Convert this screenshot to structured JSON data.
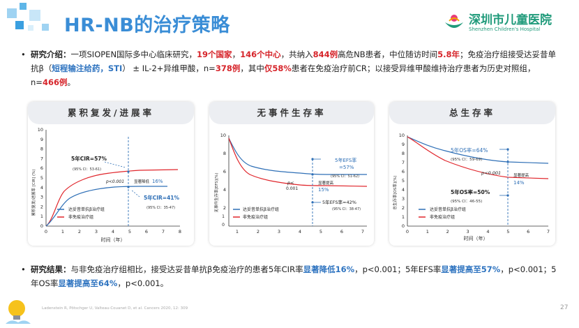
{
  "title": "HR-NB的治疗策略",
  "logo": {
    "cn": "深圳市儿童医院",
    "en": "Shenzhen Children's Hospital"
  },
  "intro": {
    "label": "研究介绍：",
    "t1": "一项SIOPEN国际多中心临床研究，",
    "countries": "19个国家",
    "t2": "，",
    "centers": "146个中心",
    "t3": "，共纳入",
    "patients": "844例",
    "t4": "高危NB患者，中位随访时间",
    "followup": "5.8年",
    "t5": "；免疫治疗组接受达妥昔单抗β（",
    "sti": "短程输注给药，STI",
    "t6": "） ± IL-2+异维甲酸，n=",
    "n1": "378例",
    "t7": "，其中",
    "cr": "仅58%",
    "t8": "患者在免疫治疗前CR；以接受异维甲酸维持治疗患者为历史对照组，n=",
    "n2": "466例",
    "t9": "。"
  },
  "panels": [
    {
      "title": "累积复发/进展率"
    },
    {
      "title": "无事件生存率"
    },
    {
      "title": "总生存率"
    }
  ],
  "charts": {
    "cir": {
      "ylabel": "累积复发/进展率 [CIR] (%)",
      "yticks": [
        "0",
        "1",
        "2",
        "3",
        "4",
        "5",
        "6",
        "7",
        "8",
        "9",
        "10"
      ],
      "xticks": [
        "0",
        "1",
        "2",
        "3",
        "4",
        "5",
        "6",
        "7",
        "8"
      ],
      "xlabel": "时间（年）",
      "legend": [
        "达妥昔单抗β治疗组",
        "非免疫治疗组"
      ],
      "ann1": "5年CIR=57%",
      "ann1ci": "(95% CI：53-61)",
      "ann2": "5年CIR=41%",
      "ann2ci": "(95% CI：35-47)",
      "p": "p<0.001",
      "sig": "显著降低",
      "sigval": "16%"
    },
    "efs": {
      "ylabel": "无事件生存率[EFS](%)",
      "yticks": [
        "0",
        "2",
        "4",
        "6",
        "8",
        "10"
      ],
      "xticks": [
        "1",
        "2",
        "3",
        "4",
        "5",
        "6",
        "7"
      ],
      "legend": [
        "达妥昔单抗β治疗组",
        "非免疫治疗组"
      ],
      "ann1": "5年EFS率",
      "ann1b": "=57%",
      "ann1ci": "(95% CI：51-62)",
      "sig": "显著提高",
      "sigval": "15%",
      "ann2": "5年EFS率=42%",
      "ann2ci": "(95% CI：38-47)",
      "p1": "p<",
      "p2": "0.001",
      "y0": "0",
      "y1": "1"
    },
    "os": {
      "ylabel": "总生存率[OS率](%)",
      "yticks": [
        "0",
        "1",
        "2",
        "3",
        "4",
        "5",
        "6",
        "7",
        "8",
        "9",
        "10"
      ],
      "xticks": [
        "0",
        "1",
        "2",
        "3",
        "4",
        "5",
        "6",
        "7"
      ],
      "xlabel": "时间（年）",
      "legend": [
        "达妥昔单抗β治疗组",
        "非免疫治疗组"
      ],
      "ann1": "5年OS率=64%",
      "ann1ci": "(95% CI：59-69)",
      "p": "p<0.001",
      "sig": "显著提高",
      "sigval": "14%",
      "ann2": "5年OS率=50%",
      "ann2ci": "(95% CI：46-55)"
    }
  },
  "result": {
    "label": "研究结果：",
    "t1": "与非免疫治疗组相比，接受达妥昔单抗β免疫治疗的患者5年CIR率",
    "s1": "显著降低16%",
    "t2": "，p<0.001；5年EFS率",
    "s2": "显著提高至57%",
    "t3": "，p<0.001；5年OS率",
    "s3": "显著提高至64%",
    "t4": "，p<0.001。"
  },
  "reference": "Ladenstein R, Pötschger U, Valteau-Couanet D, et al. Cancers 2020, 12: 309",
  "page_number": "27",
  "colors": {
    "treat": "#2e6fb6",
    "control": "#e0252b",
    "accent": "#3a8dd6",
    "logo": "#1f9a7a"
  }
}
